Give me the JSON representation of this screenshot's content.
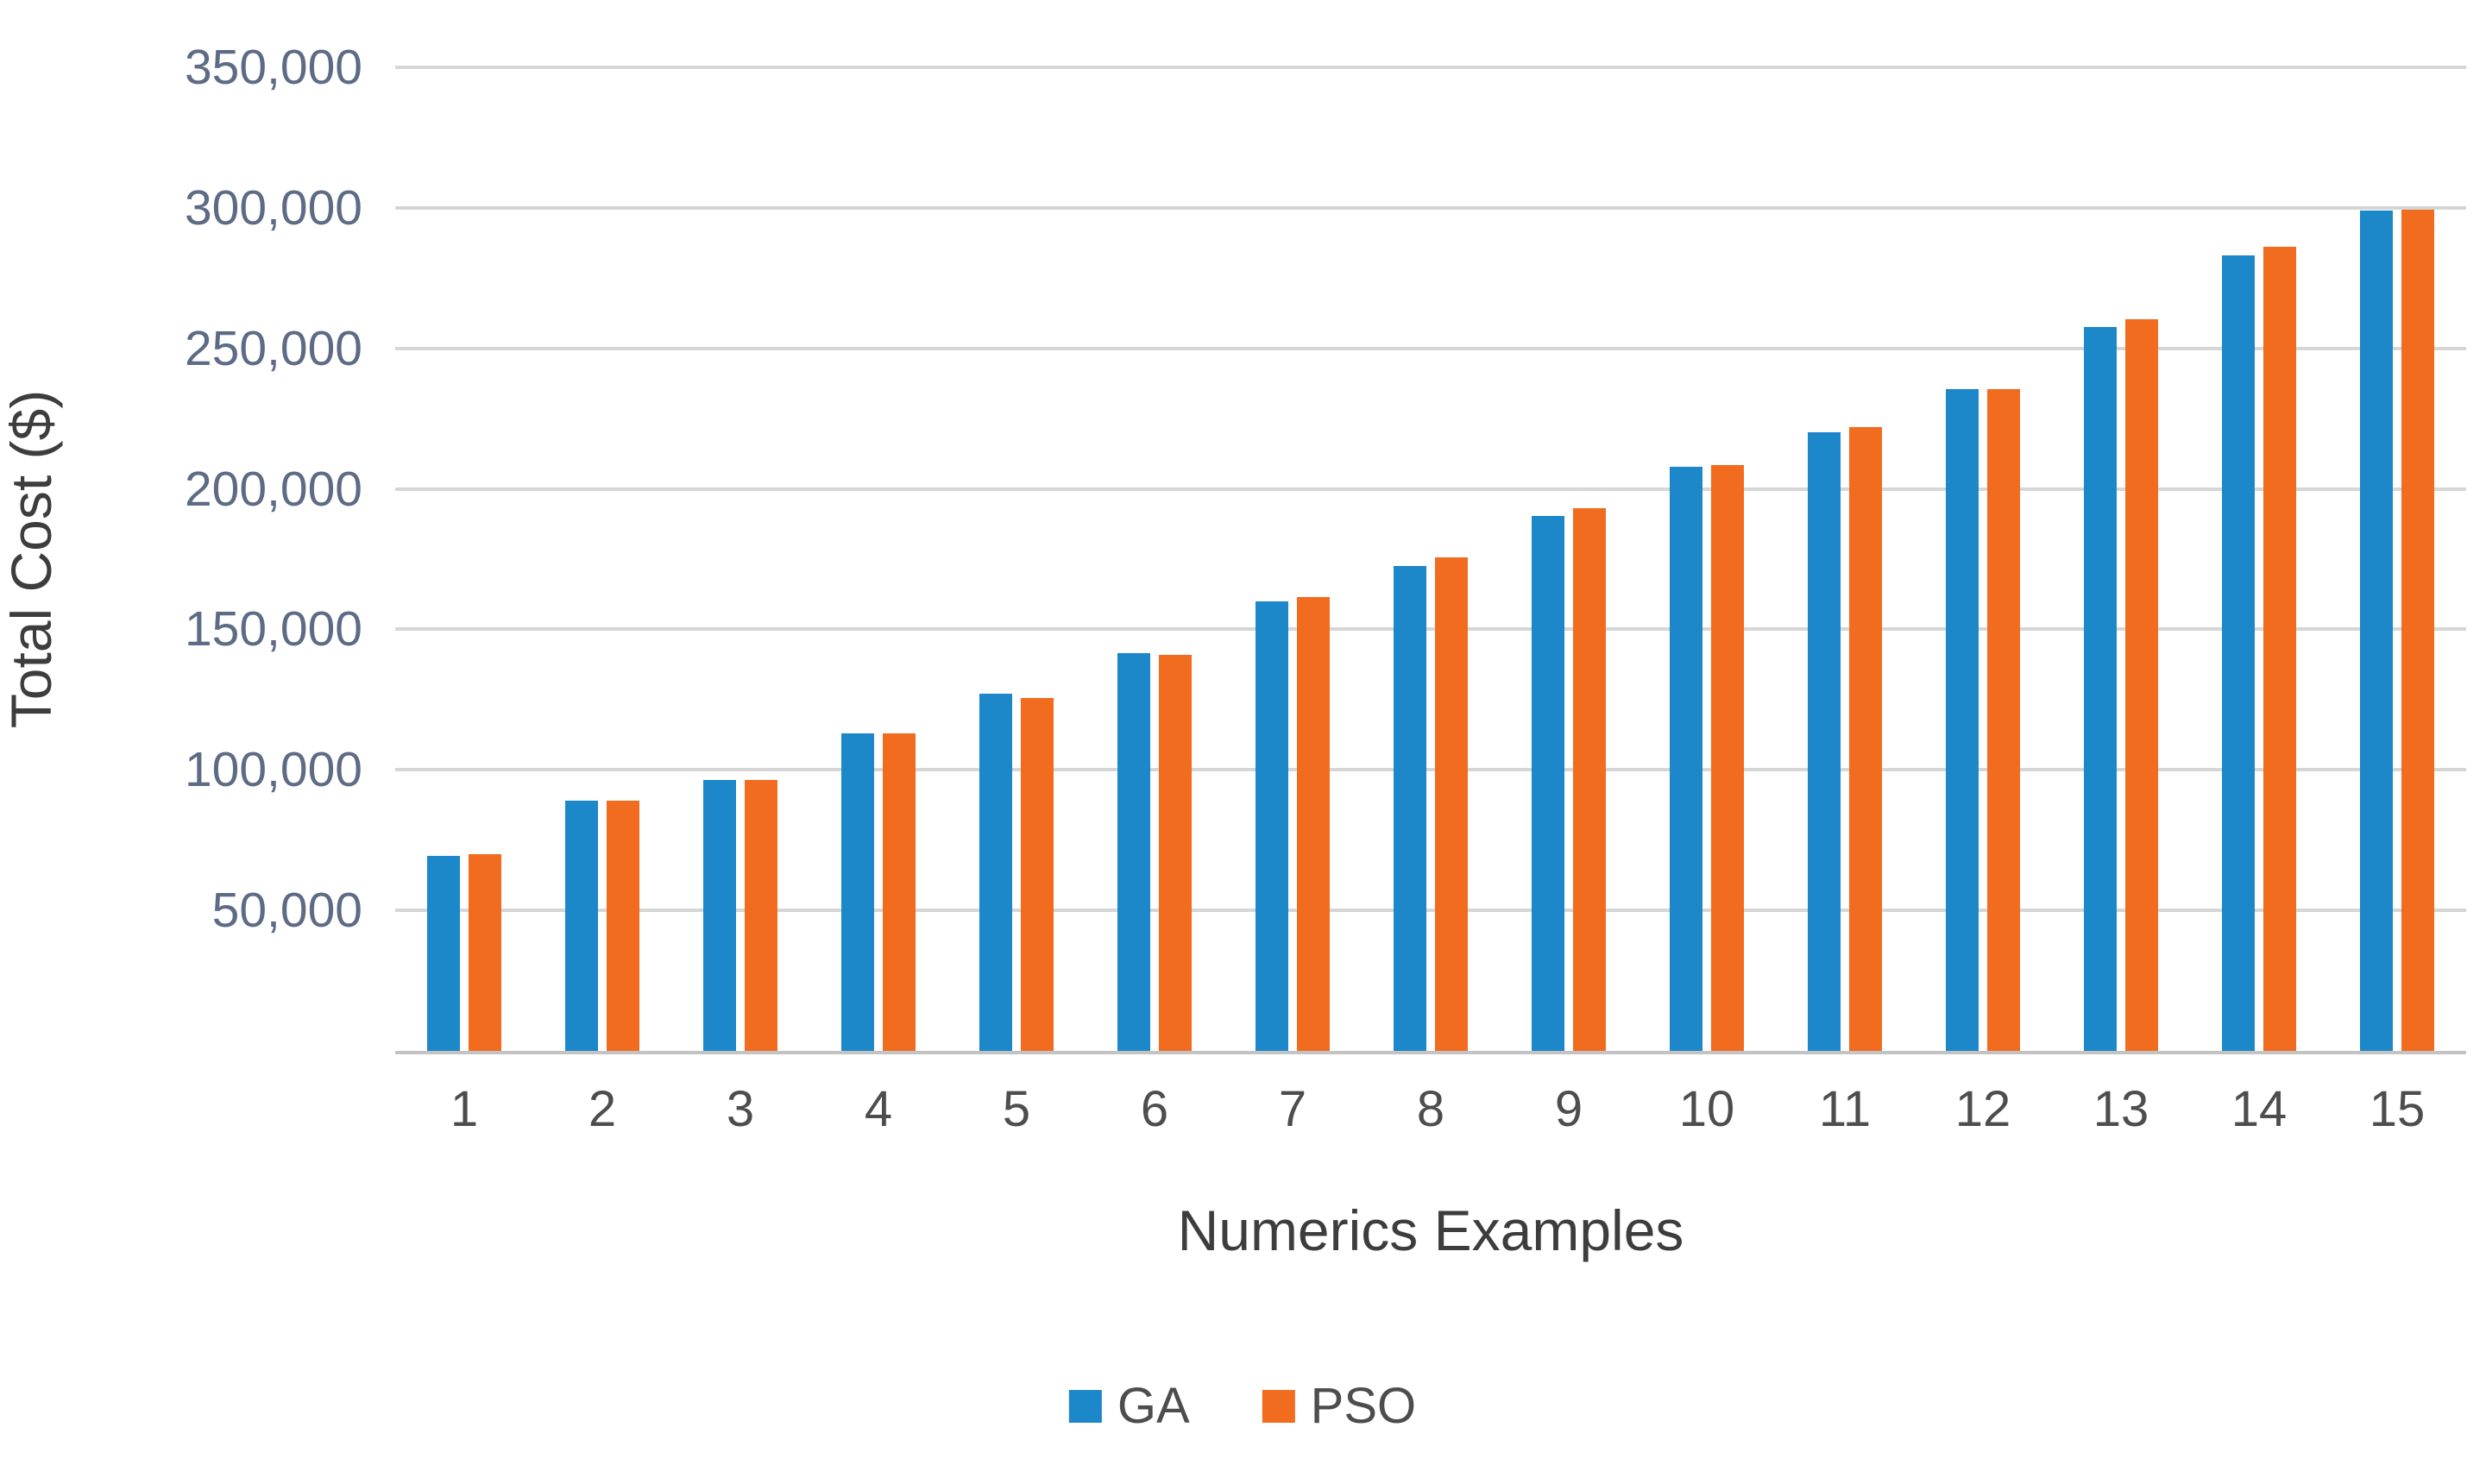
{
  "chart_data": {
    "type": "bar",
    "title": "",
    "xlabel": "Numerics Examples",
    "ylabel": "Total Cost ($)",
    "categories": [
      "1",
      "2",
      "3",
      "4",
      "5",
      "6",
      "7",
      "8",
      "9",
      "10",
      "11",
      "12",
      "13",
      "14",
      "15"
    ],
    "series": [
      {
        "name": "GA",
        "color": "#1c87c9",
        "values": [
          69500,
          89000,
          96500,
          113000,
          127000,
          141500,
          160000,
          172500,
          190500,
          208000,
          220000,
          235500,
          257500,
          283000,
          299000
        ]
      },
      {
        "name": "PSO",
        "color": "#f26c1f",
        "values": [
          70000,
          89000,
          96500,
          113000,
          125500,
          141000,
          161500,
          175500,
          193000,
          208500,
          222000,
          235500,
          260500,
          286000,
          299500
        ]
      }
    ],
    "ylim": [
      0,
      350000
    ],
    "ytick_interval": 50000,
    "yticks": [
      {
        "value": 350000,
        "label": "350,000"
      },
      {
        "value": 300000,
        "label": "300,000"
      },
      {
        "value": 250000,
        "label": "250,000"
      },
      {
        "value": 200000,
        "label": "200,000"
      },
      {
        "value": 150000,
        "label": "150,000"
      },
      {
        "value": 100000,
        "label": "100,000"
      },
      {
        "value": 50000,
        "label": "50,000"
      }
    ],
    "grid": "horizontal",
    "gridline_color": "#d6d6d6",
    "axis_line_color": "#c3c3c3",
    "legend_position": "bottom"
  }
}
